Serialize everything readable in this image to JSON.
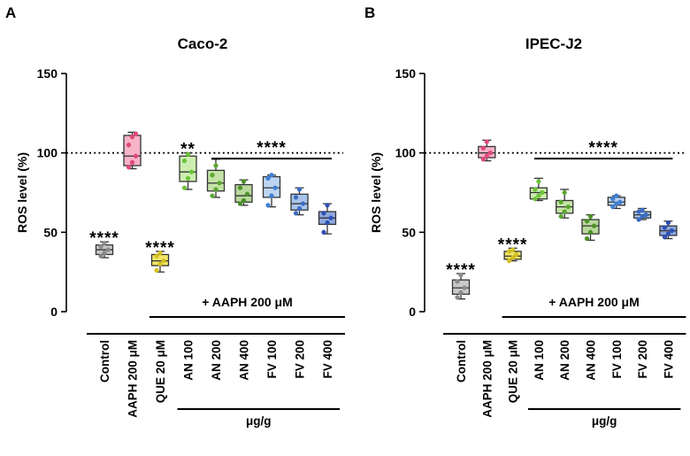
{
  "chart_data": [
    {
      "type": "box",
      "panel_letter": "A",
      "title": "Caco-2",
      "ylabel": "ROS level (%)",
      "ylim": [
        0,
        150
      ],
      "yticks": [
        0,
        50,
        100,
        150
      ],
      "reference_line": 100,
      "categories": [
        "Control",
        "AAPH 200 μM",
        "QUE 20 μM",
        "AN 100",
        "AN 200",
        "AN 400",
        "FV 100",
        "FV 200",
        "FV 400"
      ],
      "colors": [
        "#c9c9c9",
        "#f7b3c8",
        "#f2e66a",
        "#cdeeb0",
        "#c5e3a8",
        "#b9d99c",
        "#bcd6f2",
        "#a9c5ea",
        "#8fa9e0"
      ],
      "point_colors": [
        "#8a8a8a",
        "#e0487a",
        "#d4c21f",
        "#6cc23a",
        "#5aa82e",
        "#4c9127",
        "#3f7fd4",
        "#3a6cc4",
        "#2e4fb5"
      ],
      "boxes": [
        {
          "min": 34,
          "q1": 36,
          "median": 39,
          "q3": 42,
          "max": 44,
          "points": [
            35,
            37,
            39,
            41,
            43
          ]
        },
        {
          "min": 90,
          "q1": 92,
          "median": 98,
          "q3": 111,
          "max": 113,
          "points": [
            91,
            94,
            98,
            105,
            110,
            112
          ]
        },
        {
          "min": 25,
          "q1": 29,
          "median": 32,
          "q3": 36,
          "max": 38,
          "points": [
            26,
            30,
            32,
            35,
            37
          ]
        },
        {
          "min": 77,
          "q1": 82,
          "median": 88,
          "q3": 98,
          "max": 100,
          "points": [
            78,
            84,
            88,
            95,
            99
          ]
        },
        {
          "min": 72,
          "q1": 76,
          "median": 81,
          "q3": 89,
          "max": 96,
          "points": [
            73,
            77,
            81,
            86,
            92
          ]
        },
        {
          "min": 67,
          "q1": 69,
          "median": 73,
          "q3": 80,
          "max": 83,
          "points": [
            68,
            70,
            74,
            78,
            82
          ]
        },
        {
          "min": 66,
          "q1": 72,
          "median": 78,
          "q3": 85,
          "max": 86,
          "points": [
            67,
            73,
            78,
            84,
            86
          ]
        },
        {
          "min": 61,
          "q1": 64,
          "median": 68,
          "q3": 74,
          "max": 78,
          "points": [
            62,
            65,
            68,
            72,
            77
          ]
        },
        {
          "min": 49,
          "q1": 55,
          "median": 59,
          "q3": 63,
          "max": 68,
          "points": [
            50,
            56,
            59,
            62,
            67
          ]
        }
      ],
      "significance": [
        {
          "category_index": 0,
          "label": "****"
        },
        {
          "category_index": 2,
          "label": "****"
        },
        {
          "category_index": 3,
          "label": "**"
        }
      ],
      "bracket": {
        "label": "****",
        "from": 4,
        "to": 8,
        "y": 107
      },
      "treatment_label": "+ AAPH 200 μM",
      "unit_label": "μg/g"
    },
    {
      "type": "box",
      "panel_letter": "B",
      "title": "IPEC-J2",
      "ylabel": "ROS level (%)",
      "ylim": [
        0,
        150
      ],
      "yticks": [
        0,
        50,
        100,
        150
      ],
      "reference_line": 100,
      "categories": [
        "Control",
        "AAPH 200 μM",
        "QUE 20 μM",
        "AN 100",
        "AN 200",
        "AN 400",
        "FV 100",
        "FV 200",
        "FV 400"
      ],
      "colors": [
        "#c9c9c9",
        "#f7b3c8",
        "#f2e66a",
        "#cdeeb0",
        "#c5e3a8",
        "#b9d99c",
        "#bcd6f2",
        "#a9c5ea",
        "#8fa9e0"
      ],
      "point_colors": [
        "#8a8a8a",
        "#e0487a",
        "#d4c21f",
        "#6cc23a",
        "#5aa82e",
        "#4c9127",
        "#3f7fd4",
        "#3a6cc4",
        "#2e4fb5"
      ],
      "boxes": [
        {
          "min": 8,
          "q1": 11,
          "median": 15,
          "q3": 20,
          "max": 24,
          "points": [
            9,
            12,
            15,
            19,
            23
          ]
        },
        {
          "min": 95,
          "q1": 97,
          "median": 100,
          "q3": 104,
          "max": 108,
          "points": [
            96,
            98,
            100,
            103,
            107
          ]
        },
        {
          "min": 32,
          "q1": 33,
          "median": 35,
          "q3": 38,
          "max": 40,
          "points": [
            32,
            34,
            36,
            38,
            39
          ]
        },
        {
          "min": 70,
          "q1": 71,
          "median": 75,
          "q3": 78,
          "max": 84,
          "points": [
            71,
            73,
            75,
            77,
            82
          ]
        },
        {
          "min": 59,
          "q1": 62,
          "median": 66,
          "q3": 70,
          "max": 77,
          "points": [
            60,
            63,
            66,
            69,
            75
          ]
        },
        {
          "min": 45,
          "q1": 49,
          "median": 54,
          "q3": 58,
          "max": 61,
          "points": [
            46,
            50,
            54,
            57,
            60
          ]
        },
        {
          "min": 65,
          "q1": 67,
          "median": 69,
          "q3": 72,
          "max": 73,
          "points": [
            66,
            68,
            69,
            71,
            73
          ]
        },
        {
          "min": 58,
          "q1": 59,
          "median": 61,
          "q3": 63,
          "max": 65,
          "points": [
            58,
            60,
            61,
            63,
            64
          ]
        },
        {
          "min": 46,
          "q1": 48,
          "median": 51,
          "q3": 54,
          "max": 57,
          "points": [
            47,
            49,
            51,
            53,
            56
          ]
        }
      ],
      "significance": [
        {
          "category_index": 0,
          "label": "****"
        },
        {
          "category_index": 2,
          "label": "****"
        }
      ],
      "bracket": {
        "label": "****",
        "from": 3,
        "to": 8,
        "y": 107
      },
      "treatment_label": "+ AAPH 200 μM",
      "unit_label": "μg/g"
    }
  ]
}
